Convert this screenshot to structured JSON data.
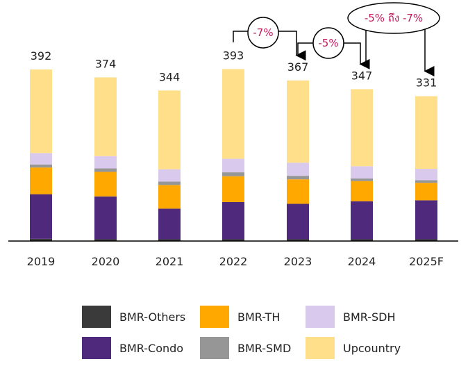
{
  "chart_data": {
    "type": "bar",
    "stacked": true,
    "categories": [
      "2019",
      "2020",
      "2021",
      "2022",
      "2023",
      "2024",
      "2025F"
    ],
    "totals": [
      "392",
      "374",
      "344",
      "393",
      "367",
      "347",
      "331"
    ],
    "ylim": [
      0,
      400
    ],
    "series": [
      {
        "name": "BMR-Others",
        "color": "#3a3a3a",
        "values": [
          5,
          4,
          4,
          4,
          4,
          4,
          4
        ]
      },
      {
        "name": "BMR-Condo",
        "color": "#4f2a7c",
        "values": [
          102,
          98,
          70,
          85,
          81,
          87,
          89
        ]
      },
      {
        "name": "BMR-TH",
        "color": "#ffa800",
        "values": [
          61,
          56,
          54,
          59,
          56,
          46,
          40
        ]
      },
      {
        "name": "BMR-SMD",
        "color": "#969696",
        "values": [
          7,
          8,
          8,
          9,
          8,
          6,
          6
        ]
      },
      {
        "name": "BMR-SDH",
        "color": "#d9c9ec",
        "values": [
          26,
          28,
          28,
          31,
          30,
          28,
          26
        ]
      },
      {
        "name": "Upcountry",
        "color": "#ffdf8a",
        "values": [
          191,
          180,
          180,
          205,
          188,
          176,
          166
        ]
      }
    ],
    "annotations": [
      {
        "text": "-7%",
        "from": "2022",
        "to": "2023"
      },
      {
        "text": "-5%",
        "from": "2023",
        "to": "2024"
      },
      {
        "text": "-5% ถึง -7%",
        "from": "2024",
        "to": "2025F"
      }
    ],
    "legend": {
      "position": "bottom",
      "columns": 3,
      "order": [
        "BMR-Others",
        "BMR-TH",
        "BMR-SDH",
        "BMR-Condo",
        "BMR-SMD",
        "Upcountry"
      ]
    }
  }
}
